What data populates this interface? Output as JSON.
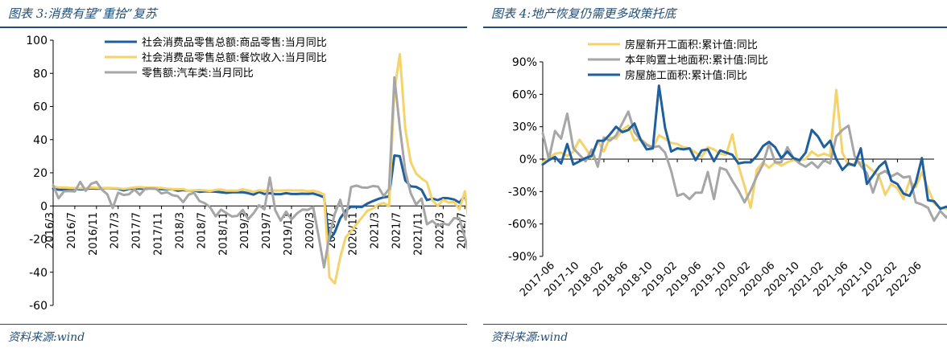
{
  "left": {
    "title": "图表 3:消费有望“重拾”复苏",
    "source": "资料来源:wind"
  },
  "right": {
    "title": "图表 4:地产恢复仍需更多政策托底",
    "source": "资料来源:wind"
  },
  "chart_data": [
    {
      "type": "line",
      "title": "图表 3:消费有望“重拾”复苏",
      "xlabel": "",
      "ylabel": "",
      "ylim": [
        -60,
        100
      ],
      "yticks": [
        -60,
        -40,
        -20,
        0,
        20,
        40,
        60,
        80,
        100
      ],
      "x_tick_labels": [
        "2016/3",
        "2016/7",
        "2016/11",
        "2017/3",
        "2017/7",
        "2017/11",
        "2018/3",
        "2018/7",
        "2018/11",
        "2019/3",
        "2019/7",
        "2019/11",
        "2020/3",
        "2020/7",
        "2020/11",
        "2021/3",
        "2021/7",
        "2021/11",
        "2022/3",
        "2022/7"
      ],
      "x_start": "2016-03",
      "x_end": "2022-08",
      "legend_position": "top-center",
      "grid": false,
      "series": [
        {
          "name": "社会消费品零售总额:商品零售:当月同比",
          "color": "#1f5f9e",
          "width": 3,
          "values": [
            10.5,
            9.8,
            9.7,
            10.2,
            10.4,
            10.0,
            10.2,
            10.6,
            10.4,
            10.5,
            10.8,
            10.6,
            10.4,
            9.4,
            10.3,
            10.5,
            10.4,
            10.3,
            10.6,
            10.5,
            10.1,
            10.0,
            10.1,
            9.2,
            9.6,
            9.1,
            9.3,
            8.5,
            8.8,
            8.7,
            8.6,
            8.2,
            7.9,
            8.2,
            8.2,
            8.3,
            7.7,
            6.8,
            8.4,
            7.2,
            7.7,
            7.1,
            7.1,
            7.7,
            7.2,
            7.2,
            7.4,
            7.3,
            7.5,
            6.5,
            5.2,
            -20.5,
            -15.8,
            -7.5,
            -2.8,
            -0.4,
            -0.5,
            -0.6,
            1.5,
            2.9,
            4.2,
            5.2,
            5.7,
            30.4,
            30.0,
            15.4,
            11.8,
            11.5,
            9.7,
            3.5,
            4.5,
            3.5,
            4.8,
            4.6,
            3.9,
            2.0,
            6.1,
            -7.1,
            -11.1,
            -4.7,
            3.1,
            2.7,
            5.1
          ],
          "area": false
        },
        {
          "name": "社会消费品零售总额:餐饮收入:当月同比",
          "color": "#f5d36b",
          "width": 3,
          "values": [
            11.7,
            11.2,
            11.2,
            10.9,
            10.8,
            10.7,
            10.7,
            11.1,
            10.9,
            10.8,
            10.9,
            10.8,
            10.7,
            10.2,
            10.7,
            11.2,
            11.4,
            11.1,
            11.1,
            11.0,
            10.9,
            10.4,
            10.1,
            10.1,
            10.2,
            9.0,
            9.5,
            9.6,
            9.4,
            9.0,
            9.7,
            9.9,
            9.2,
            9.3,
            9.2,
            10.1,
            9.3,
            8.5,
            9.5,
            9.1,
            9.4,
            9.3,
            9.3,
            9.4,
            9.4,
            9.3,
            9.4,
            8.9,
            9.2,
            8.4,
            6.9,
            -43.1,
            -46.8,
            -31.1,
            -18.9,
            -15.2,
            -11.0,
            -7.0,
            -2.9,
            -1.6,
            0.8,
            1.8,
            -0.2,
            69.6,
            91.6,
            46.4,
            26.6,
            19.5,
            16.6,
            14.3,
            3.4,
            0.1,
            3.7,
            2.0,
            2.5,
            -2.0,
            8.9,
            -16.4,
            -22.7,
            -21.1,
            -4.0,
            -1.5,
            8.4
          ],
          "area": false
        },
        {
          "name": "零售额:汽车类:当月同比",
          "color": "#a6a6a6",
          "width": 3,
          "values": [
            12.6,
            4.6,
            8.8,
            9.0,
            8.7,
            14.5,
            9.1,
            13.3,
            14.5,
            9.8,
            7.0,
            -1.3,
            8.0,
            6.6,
            7.0,
            9.9,
            6.7,
            10.4,
            10.4,
            10.3,
            7.5,
            8.3,
            6.5,
            5.9,
            2.3,
            6.8,
            8.0,
            3.0,
            1.6,
            -0.9,
            -6.3,
            -2.2,
            -4.4,
            -6.4,
            -6.0,
            -2.4,
            -8.0,
            -4.4,
            0.4,
            -2.0,
            17.2,
            -2.6,
            -8.9,
            -3.4,
            -8.1,
            -4.6,
            -2.2,
            -2.4,
            -0.7,
            -18.1,
            -37.0,
            -18.1,
            -4.7,
            3.7,
            -8.2,
            11.4,
            12.3,
            11.2,
            11.0,
            12.0,
            11.6,
            6.0,
            10.2,
            77.6,
            47.4,
            21.1,
            7.7,
            0.9,
            4.4,
            -11.1,
            -9.0,
            -12.0,
            -10.5,
            -11.5,
            -7.4,
            -7.5,
            -19.2,
            -31.7,
            -16.0,
            -4.0,
            13.9,
            9.7,
            15.9
          ],
          "area": false
        }
      ]
    },
    {
      "type": "line",
      "title": "图表 4:地产恢复仍需更多政策托底",
      "xlabel": "",
      "ylabel": "",
      "ylim": [
        -90,
        90
      ],
      "yticks": [
        "-90%",
        "-60%",
        "-30%",
        "0%",
        "30%",
        "60%",
        "90%"
      ],
      "ytick_values": [
        -90,
        -60,
        -30,
        0,
        30,
        60,
        90
      ],
      "x_tick_labels": [
        "2017-06",
        "2017-10",
        "2018-02",
        "2018-06",
        "2018-10",
        "2019-02",
        "2019-06",
        "2019-10",
        "2020-02",
        "2020-06",
        "2020-10",
        "2021-02",
        "2021-06",
        "2021-10",
        "2022-02",
        "2022-06"
      ],
      "x_start": "2017-04",
      "x_end": "2022-08",
      "legend_position": "top-center",
      "grid": false,
      "series": [
        {
          "name": "房屋新开工面积:累计值:同比",
          "color": "#f5d36b",
          "width": 3,
          "values": [
            -3,
            1,
            5,
            6,
            3,
            7,
            18,
            10,
            1,
            17,
            7,
            20,
            19,
            27,
            31,
            17,
            19,
            14,
            10,
            22,
            19,
            15,
            14,
            11,
            10,
            6,
            2,
            11,
            9,
            5,
            4,
            23,
            -6,
            -25,
            -45,
            -10,
            -3,
            -8,
            -3,
            -6,
            -3,
            -1,
            -1,
            0,
            7,
            3,
            5,
            3,
            64,
            6,
            -6,
            -4,
            -3,
            -6,
            -11,
            -16,
            -33,
            -23,
            -27,
            -37,
            -20,
            -26,
            -12,
            -27,
            -41,
            -45,
            -46,
            -47
          ],
          "area": false
        },
        {
          "name": "本年购置土地面积:累计值:同比",
          "color": "#a6a6a6",
          "width": 3,
          "values": [
            24,
            0,
            26,
            19,
            42,
            10,
            4,
            -2,
            9,
            -7,
            20,
            17,
            22,
            33,
            44,
            25,
            18,
            13,
            11,
            12,
            6,
            -11,
            -34,
            -32,
            -37,
            -31,
            -31,
            -12,
            -37,
            -8,
            -10,
            -20,
            -29,
            -40,
            -29,
            -16,
            -5,
            14,
            -3,
            -3,
            11,
            1,
            -4,
            -7,
            -3,
            -8,
            -1,
            -4,
            21,
            27,
            31,
            3,
            -6,
            -13,
            -31,
            -14,
            -11,
            -16,
            -13,
            -17,
            -16,
            -40,
            -42,
            -45,
            -57,
            -48,
            -54,
            -48,
            -57
          ],
          "area": false
        },
        {
          "name": "房屋施工面积:累计值:同比",
          "color": "#1f5f9e",
          "width": 3,
          "values": [
            -5,
            -1,
            2,
            -4,
            14,
            -5,
            -2,
            1,
            3,
            17,
            17,
            23,
            30,
            25,
            27,
            33,
            18,
            9,
            10,
            68,
            29,
            7,
            10,
            9,
            10,
            -1,
            8,
            9,
            -2,
            8,
            6,
            4,
            -4,
            -3,
            -3,
            3,
            12,
            16,
            11,
            1,
            7,
            1,
            -1,
            6,
            27,
            21,
            11,
            17,
            0,
            -10,
            -4,
            -6,
            10,
            -23,
            -15,
            -7,
            -2,
            -20,
            -23,
            -32,
            -34,
            -22,
            1,
            -38,
            -39,
            -46,
            -44,
            -47
          ]
        }
      ]
    }
  ]
}
